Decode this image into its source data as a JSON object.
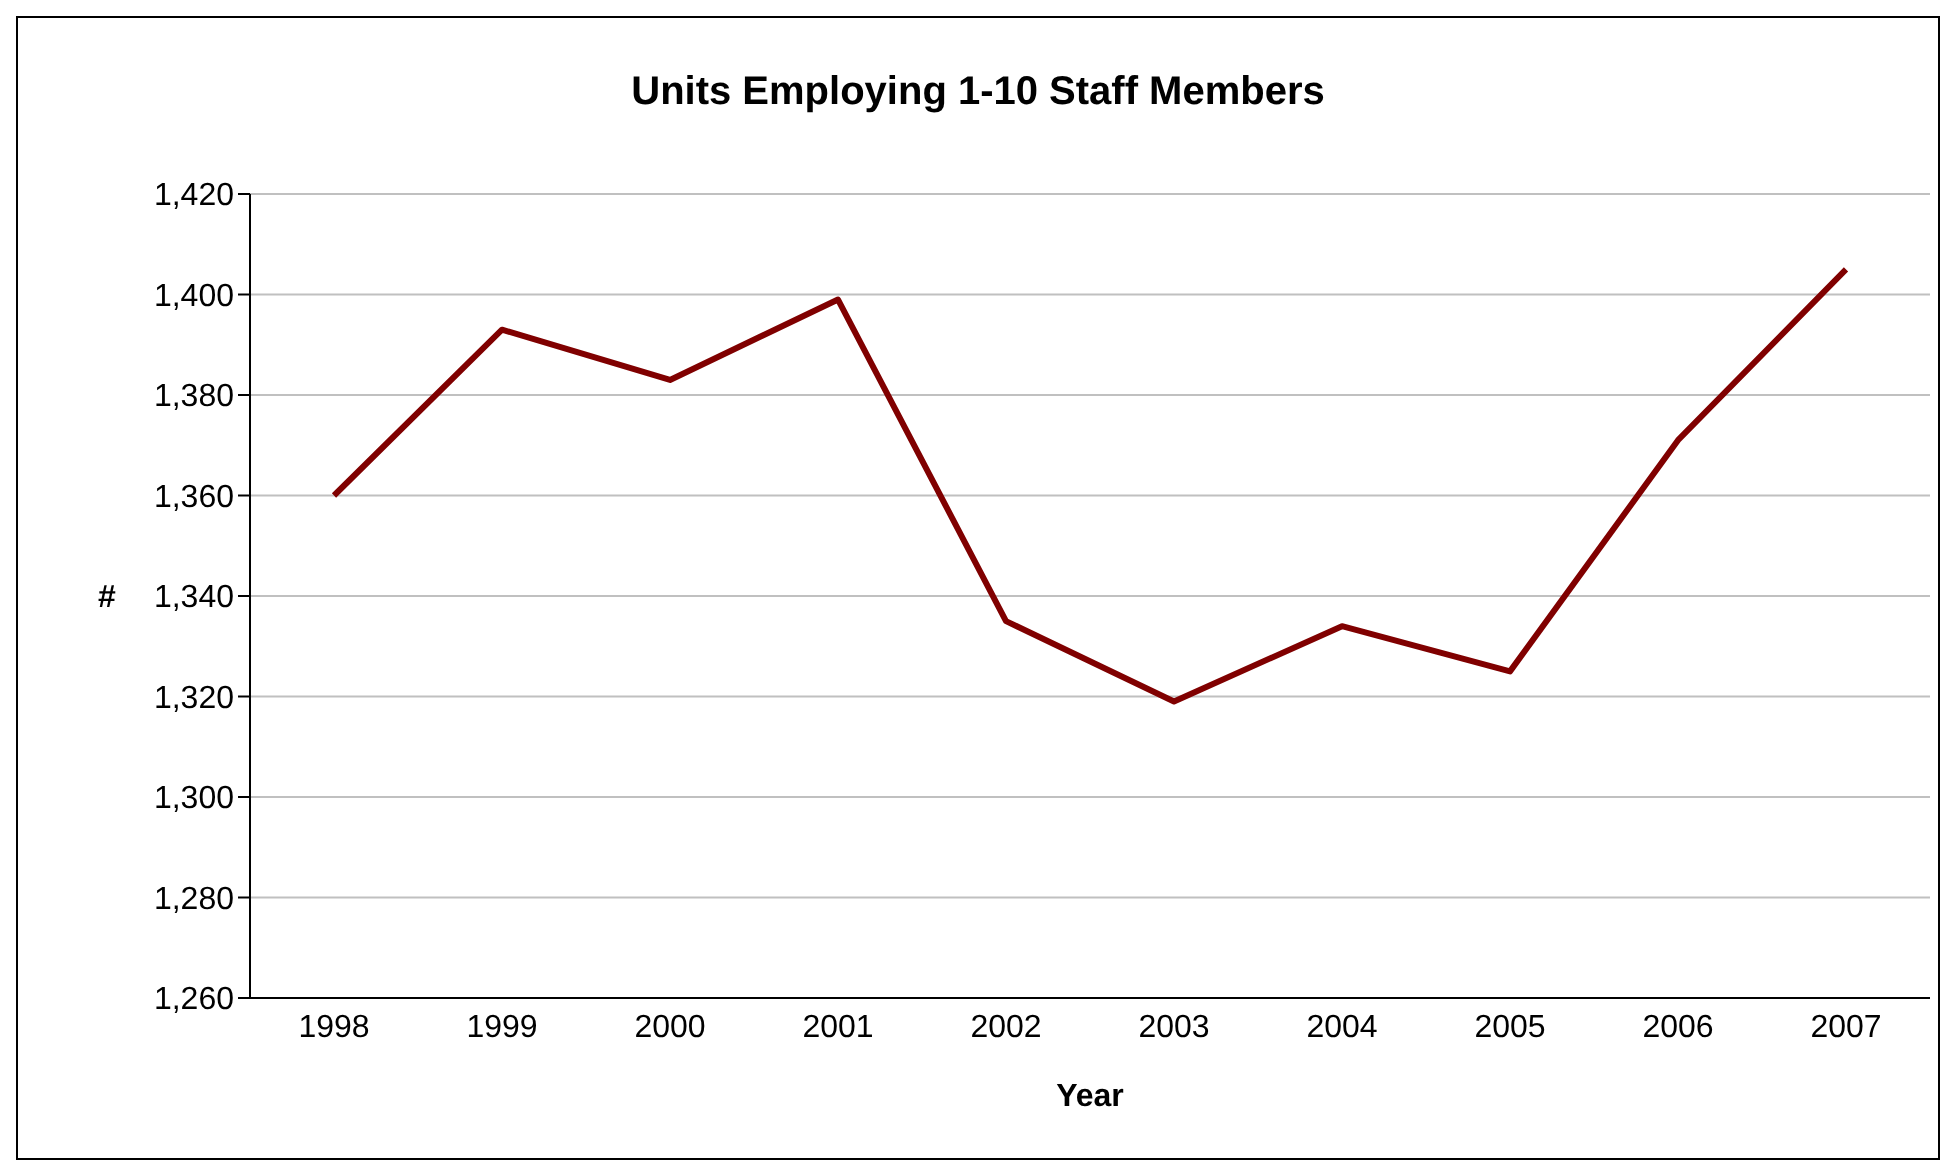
{
  "chart_data": {
    "type": "line",
    "title": "Units Employing 1-10 Staff Members",
    "xlabel": "Year",
    "ylabel": "#",
    "categories": [
      "1998",
      "1999",
      "2000",
      "2001",
      "2002",
      "2003",
      "2004",
      "2005",
      "2006",
      "2007"
    ],
    "series": [
      {
        "color": "#800000",
        "values": [
          1360,
          1393,
          1383,
          1399,
          1335,
          1319,
          1334,
          1325,
          1371,
          1405
        ]
      }
    ],
    "ylim": [
      1260,
      1420
    ],
    "yticks": [
      {
        "value": 1260,
        "label": "1,260"
      },
      {
        "value": 1280,
        "label": "1,280"
      },
      {
        "value": 1300,
        "label": "1,300"
      },
      {
        "value": 1320,
        "label": "1,320"
      },
      {
        "value": 1340,
        "label": "1,340"
      },
      {
        "value": 1360,
        "label": "1,360"
      },
      {
        "value": 1380,
        "label": "1,380"
      },
      {
        "value": 1400,
        "label": "1,400"
      },
      {
        "value": 1420,
        "label": "1,420"
      }
    ],
    "grid": "y",
    "legend": false,
    "marker": "none",
    "line_style": "solid"
  }
}
